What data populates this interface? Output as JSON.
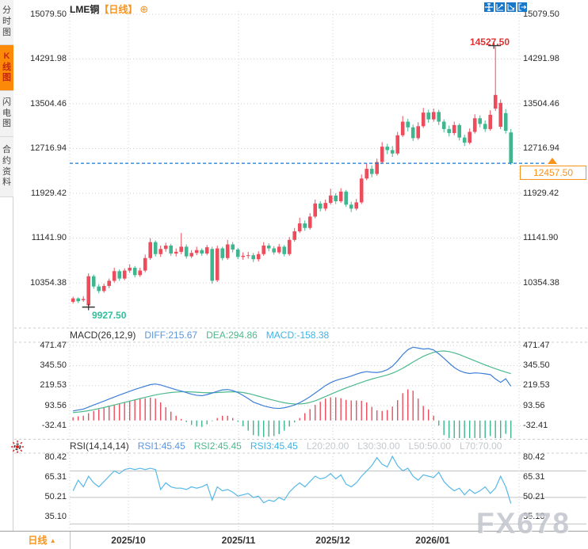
{
  "window": {
    "title": "LME铜 日线 行情图表"
  },
  "colors": {
    "up": "#ec4c5c",
    "down": "#3fb68e",
    "accent_orange": "#f7941d",
    "diff_blue": "#3d7fd8",
    "dea_green": "#4cb98c",
    "macd_cyan": "#3db3e6",
    "rsi_line": "#56b8e8",
    "last_price_line": "#1679d6",
    "anno_high_red": "#e03333",
    "anno_low_green": "#2fbf9a",
    "grid": "#d0d0d0",
    "separator": "#cccccc",
    "level_line": "#c2c2c2",
    "toolbar_blue": "#1777c8"
  },
  "sidebar": {
    "items": [
      {
        "label": "分时图",
        "active": false
      },
      {
        "label": "K线图",
        "active": true
      },
      {
        "label": "闪电图",
        "active": false
      },
      {
        "label": "合约资料",
        "active": false
      }
    ]
  },
  "header": {
    "symbol": "LME铜",
    "period_tag": "【日线】",
    "add_icon": "⊕"
  },
  "toolbar": {
    "icons": [
      "pan",
      "fit-horizontal",
      "fit-vertical",
      "exit-chart"
    ]
  },
  "bottom_bar": {
    "period_label": "日线",
    "arrow": "▲"
  },
  "watermark": "FX678",
  "chart_data": [
    {
      "type": "candlestick",
      "title": "LME铜【日线】",
      "y_axis": [
        "15079.50",
        "14291.98",
        "13504.46",
        "12716.94",
        "11929.42",
        "11141.90",
        "10354.38"
      ],
      "ylim": [
        9580,
        15135
      ],
      "x_labels": [
        "2025/10",
        "2025/11",
        "2025/12",
        "2026/01"
      ],
      "grid": true,
      "annotations": {
        "high": "14527.50",
        "low": "9927.50",
        "last_price": "12457.50"
      },
      "last_price": 12457.5,
      "candles_format": [
        "open",
        "close",
        "low",
        "high"
      ],
      "candles": [
        [
          10020,
          10080,
          9990,
          10110
        ],
        [
          10080,
          10030,
          10000,
          10100
        ],
        [
          10050,
          10070,
          10020,
          10120
        ],
        [
          9960,
          10470,
          9927.5,
          10520
        ],
        [
          10470,
          10290,
          10250,
          10500
        ],
        [
          10290,
          10210,
          10170,
          10330
        ],
        [
          10210,
          10300,
          10180,
          10340
        ],
        [
          10300,
          10390,
          10260,
          10430
        ],
        [
          10390,
          10560,
          10360,
          10620
        ],
        [
          10560,
          10430,
          10390,
          10590
        ],
        [
          10430,
          10570,
          10400,
          10610
        ],
        [
          10570,
          10620,
          10530,
          10680
        ],
        [
          10620,
          10490,
          10450,
          10650
        ],
        [
          10490,
          10570,
          10460,
          10620
        ],
        [
          10570,
          10790,
          10540,
          10850
        ],
        [
          10790,
          11070,
          10760,
          11140
        ],
        [
          11070,
          10860,
          10820,
          11100
        ],
        [
          10860,
          10950,
          10810,
          11010
        ],
        [
          10950,
          11010,
          10900,
          11060
        ],
        [
          11010,
          10870,
          10830,
          11040
        ],
        [
          10870,
          10900,
          10820,
          10960
        ],
        [
          10900,
          10990,
          10860,
          11230
        ],
        [
          10990,
          10820,
          10780,
          11030
        ],
        [
          10820,
          10880,
          10790,
          10930
        ],
        [
          10880,
          10930,
          10840,
          10990
        ],
        [
          10930,
          10870,
          10830,
          10960
        ],
        [
          10870,
          10980,
          10840,
          11020
        ],
        [
          10950,
          10390,
          10340,
          10990
        ],
        [
          10400,
          10960,
          10370,
          11010
        ],
        [
          10960,
          10790,
          10750,
          10990
        ],
        [
          10790,
          11030,
          10760,
          11110
        ],
        [
          11030,
          10940,
          10890,
          11070
        ],
        [
          10940,
          10810,
          10770,
          10970
        ],
        [
          10810,
          10830,
          10760,
          10890
        ],
        [
          10830,
          10840,
          10780,
          10900
        ],
        [
          10840,
          10770,
          10720,
          10880
        ],
        [
          10770,
          10860,
          10730,
          10910
        ],
        [
          10860,
          11010,
          10830,
          11070
        ],
        [
          11010,
          10960,
          10910,
          11050
        ],
        [
          10960,
          10890,
          10850,
          11000
        ],
        [
          10890,
          10990,
          10860,
          11040
        ],
        [
          10990,
          10860,
          10820,
          11020
        ],
        [
          10860,
          11110,
          10830,
          11160
        ],
        [
          11110,
          11260,
          11080,
          11320
        ],
        [
          11260,
          11400,
          11230,
          11500
        ],
        [
          11400,
          11320,
          11270,
          11450
        ],
        [
          11320,
          11520,
          11290,
          11580
        ],
        [
          11520,
          11750,
          11490,
          11820
        ],
        [
          11750,
          11660,
          11610,
          11790
        ],
        [
          11660,
          11760,
          11620,
          11820
        ],
        [
          11760,
          11890,
          11730,
          12010
        ],
        [
          11890,
          11790,
          11740,
          11930
        ],
        [
          11790,
          11960,
          11760,
          12020
        ],
        [
          11960,
          11730,
          11690,
          11990
        ],
        [
          11730,
          11660,
          11600,
          11780
        ],
        [
          11660,
          11770,
          11630,
          11830
        ],
        [
          11770,
          12190,
          11740,
          12260
        ],
        [
          12190,
          12360,
          12160,
          12460
        ],
        [
          12360,
          12270,
          12210,
          12420
        ],
        [
          12270,
          12480,
          12240,
          12540
        ],
        [
          12480,
          12750,
          12450,
          12830
        ],
        [
          12750,
          12690,
          12620,
          12800
        ],
        [
          12690,
          12630,
          12570,
          12760
        ],
        [
          12630,
          12950,
          12600,
          13010
        ],
        [
          12950,
          13190,
          12920,
          13290
        ],
        [
          13190,
          13090,
          13020,
          13240
        ],
        [
          13090,
          12900,
          12850,
          13140
        ],
        [
          12900,
          13110,
          12870,
          13180
        ],
        [
          13110,
          13350,
          13080,
          13430
        ],
        [
          13350,
          13230,
          13170,
          13400
        ],
        [
          13230,
          13360,
          13190,
          13420
        ],
        [
          13360,
          13190,
          13130,
          13400
        ],
        [
          13190,
          13060,
          13000,
          13230
        ],
        [
          13060,
          12990,
          12930,
          13120
        ],
        [
          12990,
          13130,
          12950,
          13190
        ],
        [
          13130,
          12910,
          12860,
          13160
        ],
        [
          12910,
          12820,
          12760,
          12960
        ],
        [
          12820,
          13010,
          12790,
          13070
        ],
        [
          13010,
          13250,
          12980,
          13320
        ],
        [
          13250,
          13150,
          13090,
          13300
        ],
        [
          13150,
          13060,
          13010,
          13210
        ],
        [
          13060,
          13310,
          13030,
          13390
        ],
        [
          13420,
          13660,
          13380,
          14527.5
        ],
        [
          13100,
          13520,
          13060,
          13580
        ],
        [
          13340,
          13030,
          12980,
          13410
        ],
        [
          13000,
          12457.5,
          12430,
          13060
        ]
      ]
    },
    {
      "type": "line",
      "name": "MACD",
      "legend": [
        {
          "text": "MACD(26,12,9)",
          "color": "#333333"
        },
        {
          "text": "DIFF:215.67",
          "color": "#5a96dd"
        },
        {
          "text": "DEA:294.86",
          "color": "#4eb98d"
        },
        {
          "text": "MACD:-158.38",
          "color": "#3db3e6"
        }
      ],
      "y_axis": [
        "471.47",
        "345.50",
        "219.53",
        "93.56",
        "-32.41"
      ],
      "histogram_rule": "MACD = 2*(DIFF-DEA)",
      "series": [
        {
          "name": "DIFF",
          "values": [
            60,
            66,
            72,
            85,
            98,
            110,
            122,
            135,
            148,
            160,
            172,
            184,
            196,
            206,
            216,
            226,
            230,
            224,
            214,
            204,
            194,
            186,
            176,
            166,
            159,
            156,
            163,
            173,
            184,
            193,
            195,
            189,
            176,
            158,
            138,
            116,
            104,
            92,
            84,
            78,
            76,
            80,
            88,
            98,
            112,
            130,
            150,
            173,
            196,
            220,
            238,
            252,
            262,
            270,
            280,
            292,
            302,
            308,
            304,
            302,
            308,
            320,
            342,
            376,
            415,
            446,
            462,
            456,
            450,
            453,
            444,
            420,
            392,
            362,
            334,
            314,
            302,
            296,
            300,
            298,
            294,
            289,
            262,
            240,
            263,
            215.67
          ]
        },
        {
          "name": "DEA",
          "values": [
            50,
            53,
            57,
            62,
            68,
            75,
            82,
            90,
            98,
            106,
            114,
            122,
            130,
            138,
            146,
            154,
            161,
            167,
            172,
            176,
            179,
            181,
            181,
            180,
            178,
            176,
            175,
            175,
            176,
            178,
            180,
            181,
            180,
            176,
            170,
            162,
            153,
            144,
            135,
            127,
            119,
            112,
            107,
            104,
            104,
            107,
            114,
            124,
            137,
            151,
            165,
            179,
            192,
            205,
            217,
            229,
            240,
            251,
            261,
            270,
            278,
            287,
            298,
            312,
            329,
            348,
            368,
            387,
            404,
            418,
            429,
            436,
            438,
            434,
            426,
            415,
            402,
            389,
            376,
            363,
            350,
            338,
            326,
            315,
            305,
            294.86
          ]
        }
      ]
    },
    {
      "type": "line",
      "name": "RSI",
      "legend": [
        {
          "text": "RSI(14,14,14)",
          "color": "#333333"
        },
        {
          "text": "RSI1:45.45",
          "color": "#5a96dd"
        },
        {
          "text": "RSI2:45.45",
          "color": "#4eb98d"
        },
        {
          "text": "RSI3:45.45",
          "color": "#3db3e6"
        },
        {
          "text": "L20:20.00",
          "color": "#c4c8cc"
        },
        {
          "text": "L30:30.00",
          "color": "#c4c8cc"
        },
        {
          "text": "L50:50.00",
          "color": "#c4c8cc"
        },
        {
          "text": "L70:70.00",
          "color": "#c4c8cc"
        }
      ],
      "y_axis": [
        "80.42",
        "65.31",
        "50.21",
        "35.10"
      ],
      "levels": [
        70,
        50,
        30
      ],
      "values": [
        55,
        63,
        58,
        66,
        61,
        58,
        62,
        66,
        70,
        68,
        71,
        72,
        71,
        72,
        71,
        72,
        71,
        56,
        61,
        58,
        57,
        57,
        56,
        58,
        57,
        58,
        60,
        48,
        58,
        55,
        56,
        54,
        51,
        52,
        53,
        50,
        51,
        46,
        48,
        47,
        50,
        48,
        54,
        58,
        61,
        58,
        62,
        66,
        64,
        65,
        68,
        64,
        67,
        60,
        58,
        61,
        66,
        70,
        74,
        80,
        75,
        73,
        81,
        74,
        70,
        72,
        66,
        63,
        67,
        66,
        65,
        69,
        62,
        58,
        55,
        57,
        52,
        56,
        53,
        55,
        58,
        53,
        57,
        66,
        58,
        45.45
      ]
    }
  ]
}
